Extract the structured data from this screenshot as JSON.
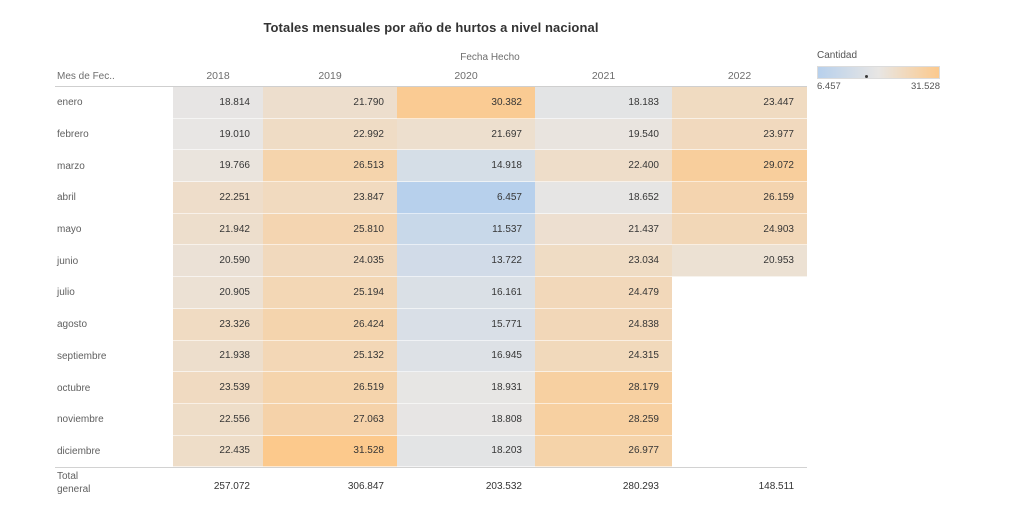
{
  "title": "Totales mensuales por año de hurtos a nivel nacional",
  "table": {
    "column_group_header": "Fecha Hecho",
    "row_header": "Mes de Fec..",
    "total_row_label": "Total general"
  },
  "legend": {
    "title": "Cantidad",
    "min_label": "6.457",
    "max_label": "31.528"
  },
  "colors": {
    "scale_min": "#b7d0ec",
    "scale_mid": "#e8e6e4",
    "scale_max": "#fcc98c",
    "value_text": "#363636",
    "header_text": "#6e6e6e"
  },
  "chart_data": {
    "type": "heatmap",
    "title": "Totales mensuales por año de hurtos a nivel nacional",
    "x_group_label": "Fecha Hecho",
    "legend_title": "Cantidad",
    "categories_x": [
      "2018",
      "2019",
      "2020",
      "2021",
      "2022"
    ],
    "categories_y": [
      "enero",
      "febrero",
      "marzo",
      "abril",
      "mayo",
      "junio",
      "julio",
      "agosto",
      "septiembre",
      "octubre",
      "noviembre",
      "diciembre"
    ],
    "values": [
      [
        18814,
        21790,
        30382,
        18183,
        23447
      ],
      [
        19010,
        22992,
        21697,
        19540,
        23977
      ],
      [
        19766,
        26513,
        14918,
        22400,
        29072
      ],
      [
        22251,
        23847,
        6457,
        18652,
        26159
      ],
      [
        21942,
        25810,
        11537,
        21437,
        24903
      ],
      [
        20590,
        24035,
        13722,
        23034,
        20953
      ],
      [
        20905,
        25194,
        16161,
        24479,
        null
      ],
      [
        23326,
        26424,
        15771,
        24838,
        null
      ],
      [
        21938,
        25132,
        16945,
        24315,
        null
      ],
      [
        23539,
        26519,
        18931,
        28179,
        null
      ],
      [
        22556,
        27063,
        18808,
        28259,
        null
      ],
      [
        22435,
        31528,
        18203,
        26977,
        null
      ]
    ],
    "totals": [
      257072,
      306847,
      203532,
      280293,
      148511
    ],
    "color_domain": [
      6457,
      31528
    ]
  }
}
